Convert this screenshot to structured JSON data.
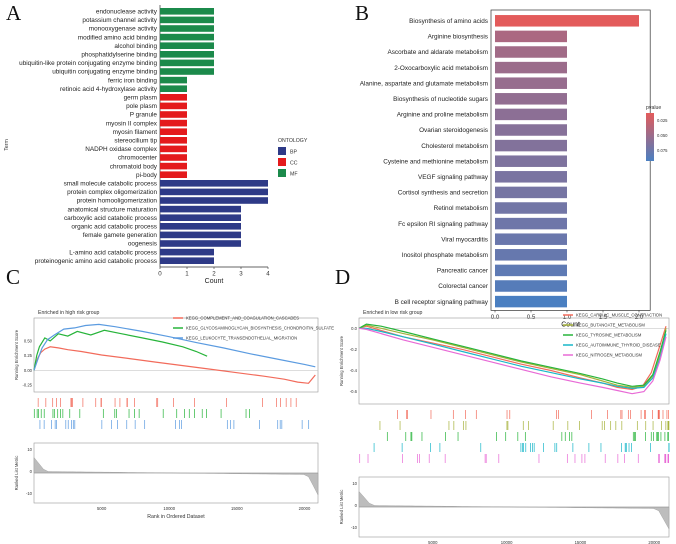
{
  "colors": {
    "BP": "#2e3a87",
    "CC": "#e41a1c",
    "MF": "#1b8a4b",
    "pvalue_high": "#e35b5b",
    "pvalue_low": "#4a7fc1",
    "gsea_red": "#f26b5b",
    "gsea_green": "#27b43a",
    "gsea_blue": "#5b9be0",
    "gsea_pink": "#e86ad6",
    "gsea_olive": "#a6b23a",
    "gsea_teal": "#19b7c9",
    "gsea_purple": "#8b6ad8"
  },
  "chart_data": [
    {
      "panel": "A",
      "type": "bar",
      "orientation": "horizontal",
      "title": "",
      "xlabel": "Count",
      "ylabel": "Term",
      "xlim": [
        0,
        4
      ],
      "xticks": [
        0,
        1,
        2,
        3,
        4
      ],
      "legend": {
        "title": "ONTOLOGY",
        "entries": [
          "BP",
          "CC",
          "MF"
        ],
        "placement": "right"
      },
      "categories": [
        "endonuclease activity",
        "potassium channel activity",
        "monooxygenase activity",
        "modified amino acid binding",
        "alcohol binding",
        "phosphatidylserine binding",
        "ubiquitin-like protein conjugating enzyme binding",
        "ubiquitin conjugating enzyme binding",
        "ferric iron binding",
        "retinoic acid 4-hydroxylase activity",
        "germ plasm",
        "pole plasm",
        "P granule",
        "myosin II complex",
        "myosin filament",
        "stereocilium tip",
        "NADPH oxidase complex",
        "chromocenter",
        "chromatoid body",
        "pi-body",
        "small molecule catabolic process",
        "protein complex oligomerization",
        "protein homooligomerization",
        "anatomical structure maturation",
        "carboxylic acid catabolic process",
        "organic acid catabolic process",
        "female gamete generation",
        "oogenesis",
        "L-amino acid catabolic process",
        "proteinogenic amino acid catabolic process"
      ],
      "values": [
        2,
        2,
        2,
        2,
        2,
        2,
        2,
        2,
        1,
        1,
        1,
        1,
        1,
        1,
        1,
        1,
        1,
        1,
        1,
        1,
        4,
        4,
        4,
        3,
        3,
        3,
        3,
        3,
        2,
        2
      ],
      "groups": [
        "MF",
        "MF",
        "MF",
        "MF",
        "MF",
        "MF",
        "MF",
        "MF",
        "MF",
        "MF",
        "CC",
        "CC",
        "CC",
        "CC",
        "CC",
        "CC",
        "CC",
        "CC",
        "CC",
        "CC",
        "BP",
        "BP",
        "BP",
        "BP",
        "BP",
        "BP",
        "BP",
        "BP",
        "BP",
        "BP"
      ]
    },
    {
      "panel": "B",
      "type": "bar",
      "orientation": "horizontal",
      "title": "",
      "xlabel": "Count",
      "ylabel": "",
      "xlim": [
        0,
        2.1
      ],
      "xticks": [
        "0.0",
        "0.5",
        "1.0",
        "1.5",
        "2.0"
      ],
      "legend": {
        "title": "pvalue",
        "ticks": [
          "0.025",
          "0.050",
          "0.075"
        ],
        "placement": "right"
      },
      "categories": [
        "Biosynthesis of amino acids",
        "Arginine biosynthesis",
        "Ascorbate and aldarate metabolism",
        "2-Oxocarboxylic acid metabolism",
        "Alanine, aspartate and glutamate metabolism",
        "Biosynthesis of nucleotide sugars",
        "Arginine and proline metabolism",
        "Ovarian steroidogenesis",
        "Cholesterol metabolism",
        "Cysteine and methionine metabolism",
        "VEGF signaling pathway",
        "Cortisol synthesis and secretion",
        "Retinol metabolism",
        "Fc epsilon RI signaling pathway",
        "Viral myocarditis",
        "Inositol phosphate metabolism",
        "Pancreatic cancer",
        "Colorectal cancer",
        "B cell receptor signaling pathway"
      ],
      "values": [
        2,
        1,
        1,
        1,
        1,
        1,
        1,
        1,
        1,
        1,
        1,
        1,
        1,
        1,
        1,
        1,
        1,
        1,
        1
      ],
      "pvalues": [
        0.012,
        0.04,
        0.045,
        0.048,
        0.05,
        0.052,
        0.055,
        0.058,
        0.06,
        0.062,
        0.064,
        0.066,
        0.068,
        0.07,
        0.072,
        0.074,
        0.078,
        0.082,
        0.088
      ]
    },
    {
      "panel": "C",
      "type": "line",
      "title": "Enriched in high risk group",
      "ylabel": "Running Enrichment Score",
      "ylabel2": "Ranked List Metric",
      "xlabel": "Rank in Ordered Dataset",
      "xlim": [
        0,
        21000
      ],
      "xticks": [
        "5000",
        "10000",
        "15000",
        "20000"
      ],
      "yticks": [
        "0.50",
        "0.25",
        "0.00",
        "-0.25"
      ],
      "yticks2": [
        "10",
        "0",
        "-10"
      ],
      "series": [
        {
          "name": "KEGG_COMPLEMENT_AND_COAGULATION_CASCADES",
          "color_key": "gsea_red",
          "x": [
            0,
            150,
            300,
            500,
            800,
            1200,
            1800,
            2500,
            3500,
            5000,
            7000,
            9000,
            11000,
            13000,
            15000,
            17000,
            18500,
            19500,
            20300,
            20800
          ],
          "y": [
            0.0,
            0.12,
            0.22,
            0.3,
            0.36,
            0.4,
            0.38,
            0.35,
            0.32,
            0.26,
            0.2,
            0.14,
            0.08,
            0.02,
            -0.04,
            -0.1,
            -0.15,
            -0.2,
            -0.22,
            -0.08
          ]
        },
        {
          "name": "KEGG_GLYCOSAMINOGLYCAN_BIOSYNTHESIS_CHONDROITIN_SULFATE",
          "color_key": "gsea_green",
          "x": [
            0,
            200,
            400,
            800,
            1200,
            1800,
            2500,
            3200,
            4200,
            5200,
            6500,
            8000,
            9500,
            11000,
            12000,
            12800
          ],
          "y": [
            0.0,
            0.25,
            0.4,
            0.55,
            0.5,
            0.62,
            0.58,
            0.66,
            0.6,
            0.68,
            0.62,
            0.55,
            0.48,
            0.4,
            0.32,
            0.24
          ]
        },
        {
          "name": "KEGG_LEUKOCYTE_TRANSENDOTHELIAL_MIGRATION",
          "color_key": "gsea_blue",
          "x": [
            0,
            300,
            600,
            1000,
            1500,
            2200,
            3000,
            3800,
            4800,
            6000,
            8000,
            10000,
            12000,
            14000,
            16000,
            18000,
            20000,
            20800
          ],
          "y": [
            0.0,
            0.2,
            0.38,
            0.52,
            0.6,
            0.7,
            0.72,
            0.76,
            0.78,
            0.74,
            0.66,
            0.57,
            0.47,
            0.38,
            0.28,
            0.19,
            0.1,
            0.06
          ]
        }
      ]
    },
    {
      "panel": "D",
      "type": "line",
      "title": "Enriched in low risk group",
      "ylabel": "Running Enrichment Score",
      "ylabel2": "Ranked List Metric",
      "xlabel": "Rank in Ordered Dataset",
      "xlim": [
        0,
        21000
      ],
      "xticks": [
        "5000",
        "10000",
        "15000",
        "20000"
      ],
      "yticks": [
        "0.0",
        "-0.2",
        "-0.4",
        "-0.6"
      ],
      "yticks2": [
        "10",
        "0",
        "-10"
      ],
      "series": [
        {
          "name": "KEGG_CARDIAC_MUSCLE_CONTRACTION",
          "color_key": "gsea_red",
          "x": [
            0,
            500,
            1500,
            3000,
            5000,
            7000,
            9000,
            11000,
            13000,
            15000,
            16500,
            17500,
            18500,
            19200,
            19800,
            20300,
            20800
          ],
          "y": [
            0.0,
            0.02,
            -0.02,
            -0.08,
            -0.14,
            -0.2,
            -0.27,
            -0.34,
            -0.4,
            -0.47,
            -0.52,
            -0.56,
            -0.58,
            -0.55,
            -0.42,
            -0.2,
            0.02
          ]
        },
        {
          "name": "KEGG_BUTANOATE_METABOLISM",
          "color_key": "gsea_olive",
          "x": [
            0,
            500,
            1500,
            3000,
            5000,
            7000,
            9000,
            11000,
            13000,
            15000,
            16500,
            17500,
            18500,
            19300,
            19900,
            20400,
            20800
          ],
          "y": [
            0.0,
            0.03,
            0.0,
            -0.05,
            -0.11,
            -0.18,
            -0.25,
            -0.32,
            -0.38,
            -0.44,
            -0.5,
            -0.54,
            -0.56,
            -0.55,
            -0.45,
            -0.25,
            0.0
          ]
        },
        {
          "name": "KEGG_TYROSINE_METABOLISM",
          "color_key": "gsea_green",
          "x": [
            0,
            500,
            1500,
            3000,
            5000,
            7000,
            9000,
            11000,
            13000,
            15000,
            16500,
            17500,
            18500,
            19300,
            19900,
            20400,
            20800
          ],
          "y": [
            0.0,
            0.04,
            0.02,
            -0.03,
            -0.1,
            -0.17,
            -0.24,
            -0.31,
            -0.37,
            -0.43,
            -0.48,
            -0.52,
            -0.55,
            -0.54,
            -0.44,
            -0.22,
            -0.02
          ]
        },
        {
          "name": "KEGG_AUTOIMMUNE_THYROID_DISEASE",
          "color_key": "gsea_teal",
          "x": [
            0,
            500,
            1500,
            3000,
            5000,
            7000,
            9000,
            11000,
            13000,
            15000,
            16500,
            17500,
            18500,
            19300,
            19900,
            20400,
            20800
          ],
          "y": [
            0.0,
            0.0,
            -0.03,
            -0.08,
            -0.15,
            -0.22,
            -0.29,
            -0.36,
            -0.42,
            -0.48,
            -0.52,
            -0.55,
            -0.57,
            -0.56,
            -0.47,
            -0.28,
            -0.05
          ]
        },
        {
          "name": "KEGG_NITROGEN_METABOLISM",
          "color_key": "gsea_pink",
          "x": [
            0,
            500,
            1500,
            3000,
            5000,
            7000,
            9000,
            11000,
            13000,
            15000,
            16500,
            17500,
            18500,
            19300,
            19900,
            20400,
            20800
          ],
          "y": [
            0.0,
            -0.01,
            -0.05,
            -0.11,
            -0.18,
            -0.25,
            -0.32,
            -0.39,
            -0.46,
            -0.52,
            -0.56,
            -0.59,
            -0.62,
            -0.6,
            -0.5,
            -0.3,
            -0.08
          ]
        }
      ]
    }
  ],
  "panels": {
    "A": "A",
    "B": "B",
    "C": "C",
    "D": "D"
  }
}
